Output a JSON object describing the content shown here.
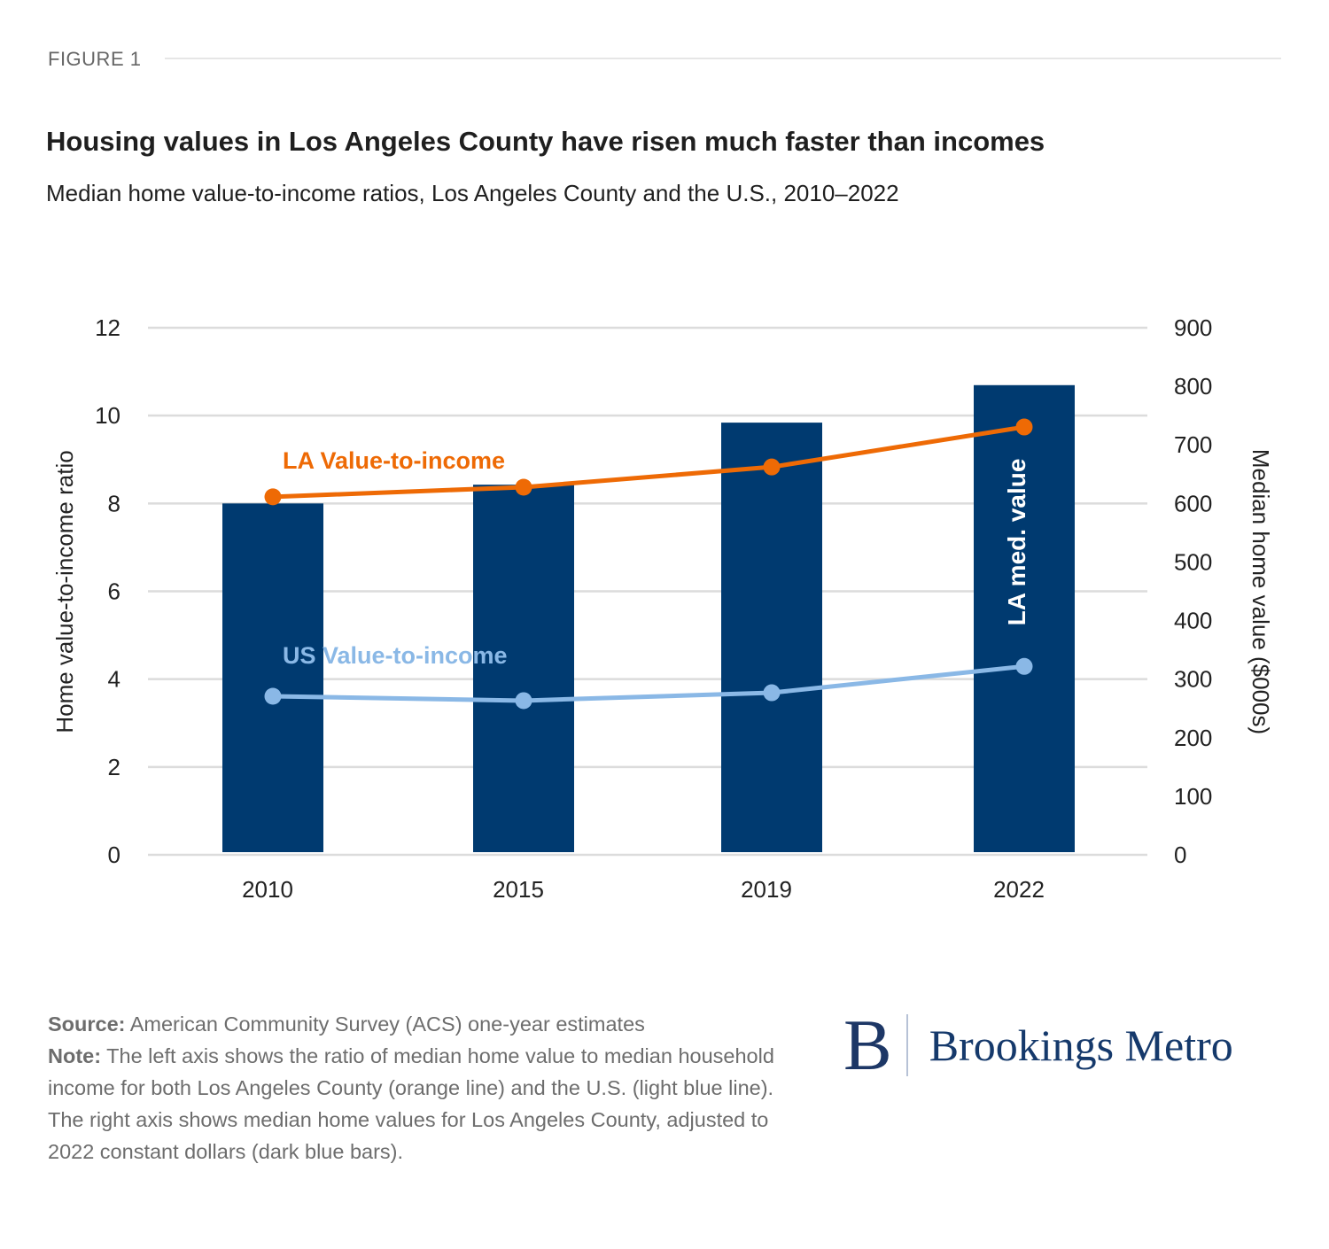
{
  "figure_label": "FIGURE 1",
  "title": "Housing values in Los Angeles County have risen much faster than incomes",
  "subtitle": "Median home value-to-income ratios, Los Angeles County and the U.S., 2010–2022",
  "footer": {
    "source_label": "Source:",
    "source_text": " American Community Survey (ACS) one-year estimates",
    "note_label": "Note:",
    "note_text": " The left axis shows the ratio of median home value to median household income for both Los Angeles County (orange line) and the U.S. (light blue line). The right axis shows median home values for Los Angeles County, adjusted to 2022 constant dollars (dark blue bars)."
  },
  "logo": {
    "mark": "B",
    "text": "Brookings Metro",
    "color": "#15396b"
  },
  "colors": {
    "bars": "#003a70",
    "la_line": "#ee6a05",
    "us_line": "#8ab8e6",
    "grid": "#dcdcdc",
    "tick_text": "#222222"
  },
  "chart_data": {
    "type": "bar",
    "title": "Housing values in Los Angeles County have risen much faster than incomes",
    "subtitle": "Median home value-to-income ratios, Los Angeles County and the U.S., 2010–2022",
    "categories": [
      "2010",
      "2015",
      "2019",
      "2022"
    ],
    "ylabel": "Home value-to-income ratio",
    "y2label": "Median home value ($000s)",
    "ylim": [
      0,
      12
    ],
    "y2lim": [
      0,
      900
    ],
    "yticks": [
      "0",
      "2",
      "4",
      "6",
      "8",
      "10",
      "12"
    ],
    "y2ticks": [
      "0",
      "100",
      "200",
      "300",
      "400",
      "500",
      "600",
      "700",
      "800",
      "900"
    ],
    "grid": true,
    "series": [
      {
        "name": "LA med. value",
        "type": "bar",
        "axis": "right",
        "values": [
          600,
          632,
          738,
          802
        ],
        "label": "LA med. value"
      },
      {
        "name": "LA Value-to-income",
        "type": "line",
        "axis": "left",
        "values": [
          8.15,
          8.37,
          8.83,
          9.74
        ],
        "label": "LA Value-to-income"
      },
      {
        "name": "US Value-to-income",
        "type": "line",
        "axis": "left",
        "values": [
          3.61,
          3.51,
          3.69,
          4.29
        ],
        "label": "US Value-to-income"
      }
    ]
  }
}
